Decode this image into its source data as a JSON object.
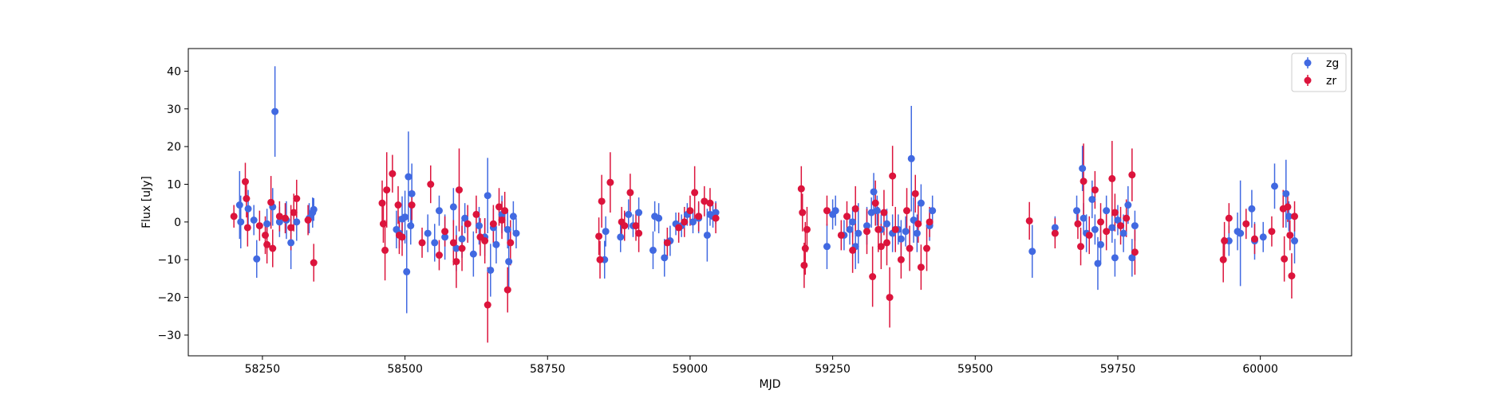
{
  "chart_data": {
    "type": "scatter",
    "title": "",
    "xlabel": "MJD",
    "ylabel": "Flux [uJy]",
    "xlim": [
      58120,
      60160
    ],
    "ylim": [
      -35.5,
      46
    ],
    "xticks": [
      58250,
      58500,
      58750,
      59000,
      59250,
      59500,
      59750,
      60000
    ],
    "yticks": [
      -30,
      -20,
      -10,
      0,
      10,
      20,
      30,
      40
    ],
    "grid": false,
    "legend_position": "top-right",
    "series": [
      {
        "name": "zg",
        "color": "#4169e1",
        "points": [
          [
            58210,
            4.5,
            9
          ],
          [
            58212,
            0,
            7
          ],
          [
            58225,
            3.5,
            5
          ],
          [
            58235,
            0.5,
            4
          ],
          [
            58240,
            -9.8,
            5
          ],
          [
            58258,
            -0.5,
            4
          ],
          [
            58268,
            4,
            5
          ],
          [
            58272,
            29.3,
            12
          ],
          [
            58280,
            0,
            4
          ],
          [
            58292,
            0.5,
            5
          ],
          [
            58300,
            -5.5,
            7
          ],
          [
            58310,
            0,
            5
          ],
          [
            58332,
            1,
            4
          ],
          [
            58338,
            2.5,
            4
          ],
          [
            58340,
            3.3,
            3
          ],
          [
            58485,
            -2,
            5
          ],
          [
            58490,
            -3,
            4
          ],
          [
            58495,
            0.8,
            6
          ],
          [
            58500,
            1.3,
            7
          ],
          [
            58503,
            -13.2,
            11
          ],
          [
            58506,
            12,
            12
          ],
          [
            58510,
            -1,
            5
          ],
          [
            58512,
            7.5,
            8
          ],
          [
            58540,
            -3,
            5
          ],
          [
            58552,
            -5.5,
            5
          ],
          [
            58560,
            3,
            4
          ],
          [
            58570,
            -4,
            6
          ],
          [
            58585,
            4,
            5
          ],
          [
            58590,
            -7,
            6
          ],
          [
            58600,
            -4.5,
            5
          ],
          [
            58605,
            1,
            4
          ],
          [
            58620,
            -8.5,
            6
          ],
          [
            58630,
            -1,
            5
          ],
          [
            58640,
            -4,
            5
          ],
          [
            58645,
            7,
            10
          ],
          [
            58650,
            -12.8,
            7
          ],
          [
            58655,
            -1.5,
            5
          ],
          [
            58660,
            -6,
            5
          ],
          [
            58670,
            2,
            5
          ],
          [
            58680,
            -2,
            5
          ],
          [
            58682,
            -10.5,
            8
          ],
          [
            58690,
            1.5,
            4
          ],
          [
            58695,
            -3,
            4
          ],
          [
            58850,
            -10,
            5
          ],
          [
            58852,
            -2.5,
            4
          ],
          [
            58878,
            -4,
            4
          ],
          [
            58892,
            2,
            4
          ],
          [
            58900,
            -1,
            3
          ],
          [
            58910,
            2.5,
            4
          ],
          [
            58935,
            -7.5,
            5
          ],
          [
            58938,
            1.5,
            4
          ],
          [
            58945,
            1,
            4
          ],
          [
            58955,
            -9.5,
            5
          ],
          [
            58965,
            -5,
            4
          ],
          [
            58975,
            -0.5,
            3
          ],
          [
            58985,
            -1,
            3
          ],
          [
            58995,
            2,
            3
          ],
          [
            59005,
            0,
            3
          ],
          [
            59015,
            1,
            4
          ],
          [
            59030,
            -3.5,
            7
          ],
          [
            59035,
            2,
            3
          ],
          [
            59040,
            1.5,
            3
          ],
          [
            59045,
            2.5,
            3
          ],
          [
            59240,
            -6.5,
            6
          ],
          [
            59250,
            2,
            4
          ],
          [
            59255,
            3,
            4
          ],
          [
            59270,
            -3.5,
            4
          ],
          [
            59280,
            -2,
            4
          ],
          [
            59285,
            0,
            4
          ],
          [
            59290,
            -6.5,
            6
          ],
          [
            59295,
            -3,
            8
          ],
          [
            59310,
            -1,
            5
          ],
          [
            59318,
            2.5,
            4
          ],
          [
            59322,
            8,
            5
          ],
          [
            59328,
            3,
            4
          ],
          [
            59335,
            -2,
            4
          ],
          [
            59345,
            -0.5,
            4
          ],
          [
            59355,
            -3,
            5
          ],
          [
            59365,
            -2,
            4
          ],
          [
            59370,
            -4.5,
            5
          ],
          [
            59378,
            -2.5,
            4
          ],
          [
            59388,
            16.8,
            14
          ],
          [
            59392,
            0.5,
            6
          ],
          [
            59398,
            -3,
            5
          ],
          [
            59405,
            5,
            5
          ],
          [
            59420,
            -1,
            4
          ],
          [
            59425,
            3,
            4
          ],
          [
            59600,
            -7.8,
            7
          ],
          [
            59640,
            -1.5,
            3
          ],
          [
            59678,
            3,
            4
          ],
          [
            59688,
            14.2,
            6
          ],
          [
            59690,
            1,
            4
          ],
          [
            59695,
            -3,
            5
          ],
          [
            59705,
            6,
            5
          ],
          [
            59710,
            -2,
            4
          ],
          [
            59715,
            -11,
            7
          ],
          [
            59720,
            -6,
            5
          ],
          [
            59730,
            3,
            4
          ],
          [
            59740,
            -1.5,
            4
          ],
          [
            59745,
            -9.5,
            5
          ],
          [
            59750,
            0.5,
            4
          ],
          [
            59760,
            -3,
            5
          ],
          [
            59768,
            4.5,
            5
          ],
          [
            59775,
            -9.5,
            5
          ],
          [
            59780,
            -1,
            4
          ],
          [
            59945,
            -5,
            4
          ],
          [
            59960,
            -2.5,
            5
          ],
          [
            59965,
            -3,
            14
          ],
          [
            59985,
            3.5,
            5
          ],
          [
            59990,
            -5,
            5
          ],
          [
            60005,
            -4,
            4
          ],
          [
            60025,
            9.5,
            6
          ],
          [
            60045,
            7.5,
            9
          ],
          [
            60050,
            1.5,
            4
          ],
          [
            60060,
            -5,
            6
          ]
        ]
      },
      {
        "name": "zr",
        "color": "#dc143c",
        "points": [
          [
            58200,
            1.5,
            3
          ],
          [
            58220,
            10.7,
            5
          ],
          [
            58222,
            6.2,
            5
          ],
          [
            58224,
            -1.5,
            5
          ],
          [
            58245,
            -1,
            4
          ],
          [
            58255,
            -3.5,
            5
          ],
          [
            58258,
            -6,
            5
          ],
          [
            58265,
            5.2,
            7
          ],
          [
            58268,
            -7,
            5
          ],
          [
            58280,
            1.5,
            4
          ],
          [
            58290,
            1,
            4
          ],
          [
            58300,
            -1.5,
            6
          ],
          [
            58305,
            2.5,
            5
          ],
          [
            58310,
            6.2,
            5
          ],
          [
            58330,
            0.5,
            4
          ],
          [
            58340,
            -10.8,
            5
          ],
          [
            58460,
            5,
            6
          ],
          [
            58462,
            -0.5,
            5
          ],
          [
            58465,
            -7.5,
            8
          ],
          [
            58468,
            8.5,
            10
          ],
          [
            58478,
            12.8,
            5
          ],
          [
            58488,
            4.5,
            5
          ],
          [
            58490,
            -3.5,
            5
          ],
          [
            58495,
            -4,
            5
          ],
          [
            58512,
            4.5,
            4
          ],
          [
            58530,
            -5.5,
            4
          ],
          [
            58545,
            10,
            5
          ],
          [
            58560,
            -8.8,
            4
          ],
          [
            58570,
            -2.5,
            4
          ],
          [
            58585,
            -5.5,
            6
          ],
          [
            58590,
            -10.5,
            7
          ],
          [
            58595,
            8.5,
            11
          ],
          [
            58600,
            -7,
            6
          ],
          [
            58610,
            -0.5,
            5
          ],
          [
            58625,
            2,
            5
          ],
          [
            58632,
            -4,
            5
          ],
          [
            58640,
            -5,
            6
          ],
          [
            58645,
            -22,
            10
          ],
          [
            58655,
            -0.5,
            5
          ],
          [
            58665,
            4,
            5
          ],
          [
            58670,
            0.5,
            5
          ],
          [
            58675,
            3,
            5
          ],
          [
            58680,
            -18,
            6
          ],
          [
            58685,
            -5.5,
            6
          ],
          [
            58840,
            -3.8,
            5
          ],
          [
            58842,
            -10,
            5
          ],
          [
            58845,
            5.5,
            7
          ],
          [
            58860,
            10.5,
            8
          ],
          [
            58880,
            0,
            4
          ],
          [
            58885,
            -1,
            4
          ],
          [
            58895,
            7.8,
            5
          ],
          [
            58905,
            -1,
            4
          ],
          [
            58910,
            -3,
            5
          ],
          [
            58960,
            -5.5,
            4
          ],
          [
            58980,
            -1.5,
            4
          ],
          [
            58990,
            0,
            4
          ],
          [
            59000,
            3,
            4
          ],
          [
            59008,
            7.8,
            7
          ],
          [
            59015,
            1.5,
            4
          ],
          [
            59025,
            5.5,
            4
          ],
          [
            59035,
            5,
            4
          ],
          [
            59045,
            1,
            4
          ],
          [
            59195,
            8.8,
            6
          ],
          [
            59197,
            2.5,
            5
          ],
          [
            59200,
            -11.5,
            6
          ],
          [
            59202,
            -7,
            7
          ],
          [
            59205,
            -2,
            6
          ],
          [
            59240,
            3,
            4
          ],
          [
            59265,
            -3.5,
            4
          ],
          [
            59275,
            1.5,
            4
          ],
          [
            59285,
            -7.5,
            6
          ],
          [
            59290,
            3.5,
            6
          ],
          [
            59310,
            -2.5,
            6
          ],
          [
            59320,
            -14.5,
            8
          ],
          [
            59325,
            5,
            6
          ],
          [
            59330,
            -2,
            6
          ],
          [
            59335,
            -6.5,
            6
          ],
          [
            59340,
            2.5,
            6
          ],
          [
            59345,
            -5.5,
            6
          ],
          [
            59350,
            -20,
            8
          ],
          [
            59355,
            12.2,
            8
          ],
          [
            59360,
            -2,
            6
          ],
          [
            59370,
            -10,
            5
          ],
          [
            59380,
            3,
            6
          ],
          [
            59385,
            -7,
            6
          ],
          [
            59395,
            7.5,
            5
          ],
          [
            59400,
            -0.5,
            5
          ],
          [
            59405,
            -12,
            6
          ],
          [
            59415,
            -7,
            6
          ],
          [
            59420,
            0,
            4
          ],
          [
            59595,
            0.3,
            5
          ],
          [
            59640,
            -3,
            4
          ],
          [
            59680,
            -0.5,
            4
          ],
          [
            59685,
            -6.5,
            5
          ],
          [
            59690,
            10.8,
            10
          ],
          [
            59700,
            -3.5,
            5
          ],
          [
            59710,
            8.5,
            5
          ],
          [
            59720,
            0,
            5
          ],
          [
            59730,
            -2.5,
            5
          ],
          [
            59740,
            11.5,
            10
          ],
          [
            59745,
            2.5,
            5
          ],
          [
            59755,
            -1,
            5
          ],
          [
            59765,
            1,
            5
          ],
          [
            59775,
            12.5,
            7
          ],
          [
            59780,
            -8,
            6
          ],
          [
            59935,
            -10,
            6
          ],
          [
            59937,
            -5,
            5
          ],
          [
            59945,
            1,
            4
          ],
          [
            59975,
            -0.5,
            4
          ],
          [
            59990,
            -4.5,
            4
          ],
          [
            60020,
            -2.5,
            4
          ],
          [
            60040,
            3.5,
            5
          ],
          [
            60042,
            -9.8,
            6
          ],
          [
            60048,
            4,
            4
          ],
          [
            60052,
            -3.5,
            4
          ],
          [
            60055,
            -14.3,
            6
          ],
          [
            60060,
            1.5,
            4
          ]
        ]
      }
    ]
  }
}
